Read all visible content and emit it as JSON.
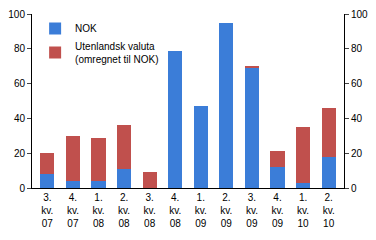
{
  "chart_data": {
    "type": "bar",
    "stacked": true,
    "categories": [
      "3. kv. 07",
      "4. kv. 07",
      "1. kv. 08",
      "2. kv. 08",
      "3. kv. 08",
      "4. kv. 08",
      "1. kv. 09",
      "2. kv. 09",
      "3. kv. 09",
      "4. kv. 09",
      "1. kv. 10",
      "2. kv. 10"
    ],
    "series": [
      {
        "name": "NOK",
        "color": "#3b7dd8",
        "values": [
          8,
          4,
          4,
          11,
          0,
          79,
          47,
          95,
          69,
          12,
          3,
          18
        ]
      },
      {
        "name": "Utenlandsk valuta (omregnet til NOK)",
        "color": "#c0504d",
        "values": [
          12,
          26,
          25,
          25,
          9,
          0,
          0,
          0,
          1,
          9,
          32,
          28
        ]
      }
    ],
    "ylim": [
      0,
      100
    ],
    "yticks": [
      0,
      20,
      40,
      60,
      80,
      100
    ],
    "y2lim": [
      0,
      100
    ],
    "y2ticks": [
      0,
      20,
      40,
      60,
      80,
      100
    ],
    "grid": false,
    "legend": "top-left"
  }
}
